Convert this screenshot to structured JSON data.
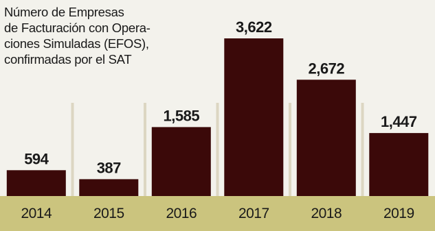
{
  "chart_data": {
    "type": "bar",
    "title_lines": [
      "Número de Empresas",
      "de Facturación con Opera-",
      "ciones Simuladas (EFOS),",
      "confirmadas por el SAT"
    ],
    "categories": [
      "2014",
      "2015",
      "2016",
      "2017",
      "2018",
      "2019"
    ],
    "values": [
      594,
      387,
      1585,
      3622,
      2672,
      1447
    ],
    "data_labels": [
      "594",
      "387",
      "1,585",
      "3,622",
      "2,672",
      "1,447"
    ],
    "ylim": [
      0,
      3622
    ],
    "grid": false,
    "legend": "none"
  },
  "colors": {
    "background": "#f3f2ec",
    "bar": "#3b0909",
    "axis_band": "#cbc47e",
    "separator": "#dcd6c2",
    "text": "#191919"
  }
}
